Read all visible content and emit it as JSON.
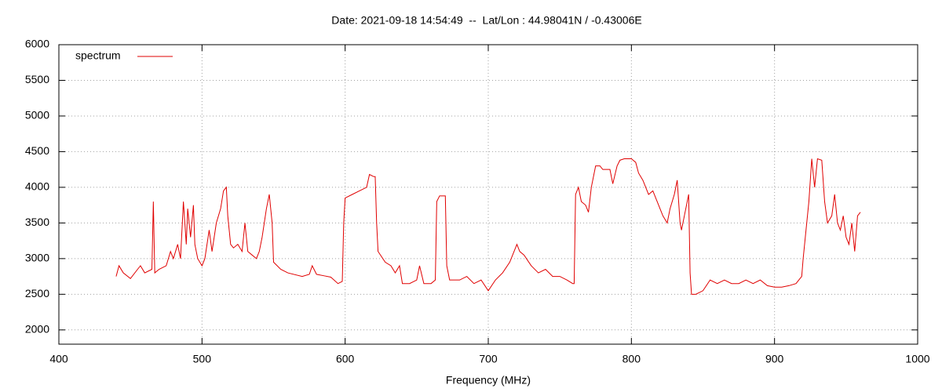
{
  "chart_data": {
    "type": "line",
    "title": "Date: 2021-09-18 14:54:49  --  Lat/Lon : 44.98041N / -0.43006E",
    "x_label": "Frequency (MHz)",
    "xlim": [
      400,
      1000
    ],
    "xticks": [
      400,
      500,
      600,
      700,
      800,
      900,
      1000
    ],
    "ylim": [
      1800,
      6000
    ],
    "yticks": [
      2000,
      2500,
      3000,
      3500,
      4000,
      4500,
      5000,
      5500,
      6000
    ],
    "grid": true,
    "legend": "top-left",
    "x": [
      440,
      442,
      445,
      450,
      455,
      457,
      460,
      465,
      466,
      467,
      470,
      475,
      478,
      480,
      483,
      485,
      487,
      489,
      490,
      492,
      494,
      495,
      497,
      500,
      502,
      505,
      507,
      510,
      513,
      515,
      517,
      518,
      520,
      522,
      525,
      528,
      530,
      532,
      535,
      538,
      540,
      542,
      545,
      547,
      549,
      550,
      555,
      560,
      570,
      575,
      577,
      580,
      585,
      590,
      595,
      598,
      599,
      600,
      605,
      610,
      615,
      617,
      620,
      621,
      622,
      623,
      628,
      632,
      635,
      638,
      640,
      645,
      650,
      652,
      655,
      660,
      663,
      664,
      666,
      670,
      671,
      673,
      680,
      685,
      690,
      695,
      700,
      705,
      710,
      715,
      718,
      720,
      722,
      725,
      730,
      735,
      740,
      745,
      750,
      755,
      759,
      760,
      761,
      763,
      765,
      768,
      770,
      772,
      775,
      778,
      780,
      782,
      785,
      787,
      790,
      792,
      795,
      800,
      803,
      805,
      808,
      810,
      812,
      815,
      818,
      820,
      822,
      825,
      827,
      830,
      832,
      834,
      835,
      838,
      840,
      841,
      842,
      845,
      850,
      855,
      860,
      865,
      870,
      875,
      880,
      885,
      890,
      895,
      900,
      905,
      910,
      915,
      919,
      920,
      922,
      924,
      926,
      928,
      930,
      933,
      935,
      937,
      940,
      942,
      944,
      946,
      948,
      950,
      952,
      954,
      956,
      958,
      960
    ],
    "series": [
      {
        "name": "spectrum",
        "color": "#e00000",
        "values": [
          2750,
          2900,
          2800,
          2720,
          2850,
          2900,
          2800,
          2850,
          3800,
          2800,
          2850,
          2900,
          3100,
          3000,
          3200,
          3000,
          3800,
          3200,
          3700,
          3300,
          3750,
          3200,
          3000,
          2900,
          3000,
          3400,
          3100,
          3500,
          3700,
          3950,
          4000,
          3600,
          3200,
          3150,
          3200,
          3100,
          3500,
          3100,
          3050,
          3000,
          3100,
          3300,
          3700,
          3900,
          3500,
          2950,
          2850,
          2800,
          2750,
          2780,
          2900,
          2780,
          2760,
          2740,
          2650,
          2680,
          3500,
          3850,
          3900,
          3950,
          4000,
          4180,
          4150,
          4150,
          3500,
          3100,
          2950,
          2900,
          2800,
          2900,
          2650,
          2650,
          2700,
          2900,
          2650,
          2650,
          2700,
          3800,
          3880,
          3880,
          2900,
          2700,
          2700,
          2750,
          2650,
          2700,
          2550,
          2700,
          2800,
          2950,
          3100,
          3200,
          3100,
          3050,
          2900,
          2800,
          2850,
          2750,
          2750,
          2700,
          2650,
          2650,
          3900,
          4000,
          3800,
          3750,
          3650,
          4000,
          4300,
          4300,
          4250,
          4250,
          4250,
          4050,
          4300,
          4380,
          4400,
          4400,
          4350,
          4200,
          4100,
          4000,
          3900,
          3950,
          3800,
          3700,
          3600,
          3500,
          3700,
          3900,
          4100,
          3500,
          3400,
          3700,
          3900,
          2800,
          2500,
          2500,
          2550,
          2700,
          2650,
          2700,
          2650,
          2650,
          2700,
          2650,
          2700,
          2620,
          2600,
          2600,
          2620,
          2650,
          2750,
          3000,
          3400,
          3800,
          4400,
          4000,
          4400,
          4380,
          3800,
          3500,
          3600,
          3900,
          3500,
          3400,
          3600,
          3300,
          3200,
          3500,
          3100,
          3600,
          3650
        ]
      }
    ]
  }
}
